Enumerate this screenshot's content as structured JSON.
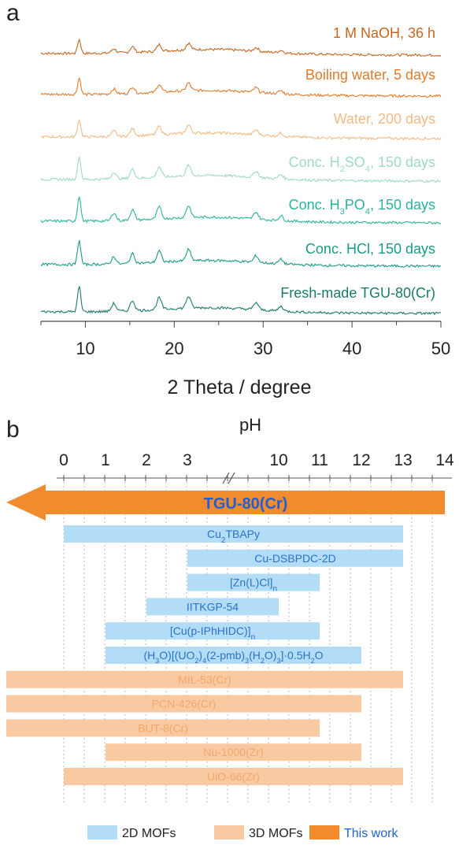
{
  "chart_data": [
    {
      "panel_label": "a",
      "type": "line",
      "xlabel": "2 Theta / degree",
      "xlim": [
        5,
        50
      ],
      "xticks": [
        10,
        20,
        30,
        40,
        50
      ],
      "peaks_2theta": [
        9.3,
        13.2,
        15.3,
        18.3,
        21.6,
        29.2,
        32.0
      ],
      "series": [
        {
          "name": "1 M NaOH, 36 h",
          "name_html": "1 M NaOH, 36 h",
          "color": "#c8661e",
          "relative_intensity": 0.55
        },
        {
          "name": "Boiling water, 5 days",
          "name_html": "Boiling water, 5 days",
          "color": "#e07a2c",
          "relative_intensity": 0.65
        },
        {
          "name": "Water, 200 days",
          "name_html": "Water, 200 days",
          "color": "#f5b985",
          "relative_intensity": 0.7
        },
        {
          "name": "Conc. H2SO4, 150 days",
          "name_html": "Conc. H<tspan baseline-shift='sub' font-size='11'>2</tspan>SO<tspan baseline-shift='sub' font-size='11'>4</tspan>, 150 days",
          "color": "#9fd9c6",
          "relative_intensity": 0.9
        },
        {
          "name": "Conc. H3PO4, 150 days",
          "name_html": "Conc. H<tspan baseline-shift='sub' font-size='11'>3</tspan>PO<tspan baseline-shift='sub' font-size='11'>4</tspan>, 150 days",
          "color": "#2cb39a",
          "relative_intensity": 1.0
        },
        {
          "name": "Conc. HCl, 150 days",
          "name_html": "Conc. HCl, 150 days",
          "color": "#1a9a86",
          "relative_intensity": 0.95
        },
        {
          "name": "Fresh-made TGU-80(Cr)",
          "name_html": "Fresh-made TGU-80(Cr)",
          "color": "#1c7a6a",
          "relative_intensity": 1.0
        }
      ]
    },
    {
      "panel_label": "b",
      "type": "bar",
      "title": "pH",
      "axis_ticks": [
        "0",
        "1",
        "2",
        "3",
        "10",
        "11",
        "12",
        "13",
        "14"
      ],
      "this_work": {
        "label": "TGU-80(Cr)",
        "from": 0,
        "to": 14,
        "color": "#f28a2e",
        "label_color": "#1f5fd6"
      },
      "bars": [
        {
          "label": "Cu2TBAPy",
          "label_html": "Cu<tspan baseline-shift='sub' font-size='10'>2</tspan>TBAPy",
          "from": 0,
          "to": 13,
          "group": "2D MOFs"
        },
        {
          "label": "Cu-DSBPDC-2D",
          "label_html": "Cu-DSBPDC-2D",
          "from": 3,
          "to": 13,
          "group": "2D MOFs"
        },
        {
          "label": "[Zn(L)Cl]n",
          "label_html": "[Zn(L)Cl]<tspan baseline-shift='sub' font-size='10'>n</tspan>",
          "from": 3,
          "to": 11,
          "group": "2D MOFs"
        },
        {
          "label": "IITKGP-54",
          "label_html": "IITKGP-54",
          "from": 2,
          "to": 10,
          "group": "2D MOFs"
        },
        {
          "label": "[Cu(p-IPhHIDC)]n",
          "label_html": "[Cu(p-IPhHIDC)]<tspan baseline-shift='sub' font-size='10'>n</tspan>",
          "from": 1,
          "to": 11,
          "group": "2D MOFs"
        },
        {
          "label": "(H3O)[(UO2)4(2-pmb)3(H2O)3]·0.5H2O",
          "label_html": "(H<tspan baseline-shift='sub' font-size='9'>3</tspan><tspan baseline-shift='0'>O)[(UO</tspan><tspan baseline-shift='sub' font-size='9'>2</tspan><tspan baseline-shift='0'>)</tspan><tspan baseline-shift='sub' font-size='9'>4</tspan><tspan baseline-shift='0'>(2-pmb)</tspan><tspan baseline-shift='sub' font-size='9'>3</tspan><tspan baseline-shift='0'>(H</tspan><tspan baseline-shift='sub' font-size='9'>2</tspan><tspan baseline-shift='0'>O)</tspan><tspan baseline-shift='sub' font-size='9'>3</tspan><tspan baseline-shift='0'>]·0.5H</tspan><tspan baseline-shift='sub' font-size='9'>2</tspan><tspan baseline-shift='0'>O</tspan>",
          "from": 1,
          "to": 12,
          "group": "2D MOFs"
        },
        {
          "label": "MIL-53(Cr)",
          "label_html": "MIL-53(Cr)",
          "from": -1,
          "to": 13,
          "group": "3D MOFs"
        },
        {
          "label": "PCN-426(Cr)",
          "label_html": "PCN-426(Cr)",
          "from": -1,
          "to": 12,
          "group": "3D MOFs"
        },
        {
          "label": "BUT-8(Cr)",
          "label_html": "BUT-8(Cr)",
          "from": -1,
          "to": 11,
          "group": "3D MOFs"
        },
        {
          "label": "Nu-1000(Zr)",
          "label_html": "Nu-1000(Zr)",
          "from": 1,
          "to": 12,
          "group": "3D MOFs"
        },
        {
          "label": "UiO-66(Zr)",
          "label_html": "UiO-66(Zr)",
          "from": 0,
          "to": 13,
          "group": "3D MOFs"
        }
      ],
      "legend": [
        {
          "label": "2D MOFs",
          "color": "#b3dcf7",
          "text_color": "#222222"
        },
        {
          "label": "3D MOFs",
          "color": "#f9c9a1",
          "text_color": "#222222"
        },
        {
          "label": "This work",
          "color": "#f28a2e",
          "text_color": "#1f5fd6"
        }
      ],
      "colors": {
        "2D MOFs": "#b3dcf7",
        "3D MOFs": "#f9c9a1",
        "label_2d": "#2a73c8",
        "label_3d": "#f2a76b"
      }
    }
  ]
}
